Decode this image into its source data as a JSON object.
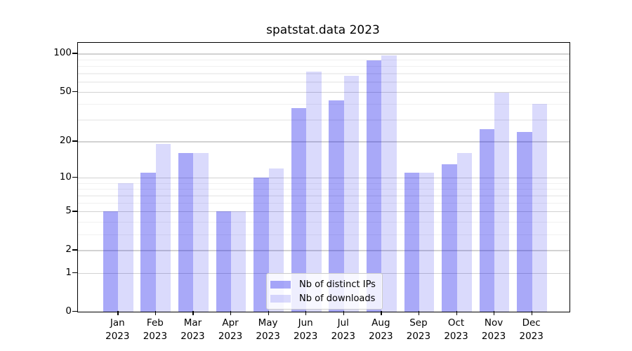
{
  "title": "spatstat.data 2023",
  "legend": {
    "items": [
      {
        "label": "Nb of distinct IPs",
        "color": "#a9a9f8"
      },
      {
        "label": "Nb of downloads",
        "color": "#dbdbfb"
      }
    ],
    "position": "lower center"
  },
  "colors": {
    "bar_distinct_ips": "rgba(10,10,235,0.35)",
    "bar_downloads": "rgba(10,10,235,0.15)",
    "major_gridline": "#d2d2d2",
    "minor_gridline": "#f0f0f0",
    "axis": "#000000",
    "background": "#ffffff"
  },
  "chart_data": {
    "type": "bar",
    "title": "spatstat.data 2023",
    "categories": [
      "Jan 2023",
      "Feb 2023",
      "Mar 2023",
      "Apr 2023",
      "May 2023",
      "Jun 2023",
      "Jul 2023",
      "Aug 2023",
      "Sep 2023",
      "Oct 2023",
      "Nov 2023",
      "Dec 2023"
    ],
    "months": [
      "Jan",
      "Feb",
      "Mar",
      "Apr",
      "May",
      "Jun",
      "Jul",
      "Aug",
      "Sep",
      "Oct",
      "Nov",
      "Dec"
    ],
    "year": "2023",
    "series": [
      {
        "name": "Nb of distinct IPs",
        "color": "rgba(10,10,235,0.35)",
        "values": [
          5,
          11,
          16,
          5,
          10,
          37,
          43,
          88,
          11,
          13,
          25,
          24
        ]
      },
      {
        "name": "Nb of downloads",
        "color": "rgba(10,10,235,0.15)",
        "values": [
          9,
          19,
          16,
          5,
          12,
          72,
          67,
          97,
          11,
          16,
          49,
          40
        ]
      }
    ],
    "xlabel": "",
    "ylabel": "",
    "yscale": "log1p",
    "yticks": [
      0,
      1,
      2,
      5,
      10,
      20,
      50,
      100
    ],
    "minor_gridlines": [
      3,
      4,
      6,
      7,
      8,
      9,
      30,
      40,
      60,
      70,
      80,
      90
    ],
    "ylim": [
      0,
      121
    ],
    "grid": true,
    "legend_position": "lower center"
  }
}
